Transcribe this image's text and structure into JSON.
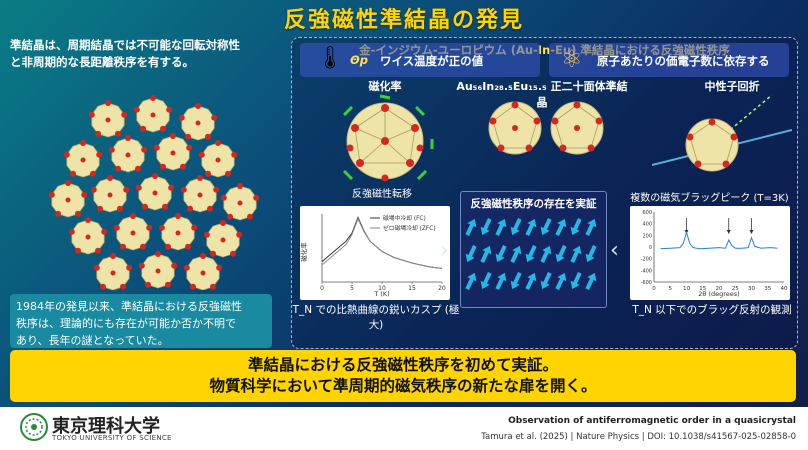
{
  "title": "反強磁性準結晶の発見",
  "left": {
    "intro_line1": "準結晶は、周期結晶では不可能な回転対称性",
    "intro_line2": "と非周期的な長距離秩序を有する。",
    "history_line1": "1984年の発見以来、準結晶における反強磁性",
    "history_line2": "秩序は、理論的にも存在が可能か否か不明で",
    "history_line3": "あり、長年の謎となっていた。"
  },
  "panel": {
    "title": "金-インジウム-ユーロピウム (Au-In-Eu) 準結晶における反強磁性秩序",
    "susceptibility_label": "磁化率",
    "quasicrystal_label": "Au₅₆In₂₈.₅Eu₁₅.₅ 正二十面体準結晶",
    "neutron_label": "中性子回折",
    "transition_label": "反強磁性転移",
    "legend_fc": "磁場中冷却 (FC)",
    "legend_zfc": "ゼロ磁場冷却 (ZFC)",
    "chart1_ylabel": "磁化率",
    "chart1_xlabel": "T (K)",
    "chart1_caption": "T_N での比熱曲線の鋭いカスプ (極大)",
    "center_title": "反強磁性秩序の存在を実証",
    "bragg_label": "複数の磁気ブラッグピーク (T=3K)",
    "chart2_xlabel": "2θ (degrees)",
    "chart2_caption": "T_N 以下でのブラッグ反射の観測",
    "weiss_symbol": "Θp",
    "weiss_text": "ワイス温度が正の値",
    "electron_text": "原子あたりの価電子数に依存する"
  },
  "banner": {
    "line1": "準結晶における反強磁性秩序を初めて実証。",
    "line2": "物質科学において準周期的磁気秩序の新たな扉を開く。"
  },
  "footer": {
    "logo_text": "東京理科大学",
    "logo_sub": "TOKYO UNIVERSITY OF SCIENCE",
    "ref_title": "Observation of antiferromagnetic order in a quasicrystal",
    "ref": "Tamura et al. (2025)  |  Nature Physics  |  DOI: 10.1038/s41567-025-02858-0"
  },
  "colors": {
    "title": "#ffd400",
    "banner": "#ffd400",
    "panel_title": "#ffe14d",
    "fc_line": "#333333",
    "zfc_line": "#8a8a8a",
    "bragg_line": "#2a7fd4"
  },
  "chart_data": [
    {
      "type": "line",
      "xlabel": "T (K)",
      "ylabel": "磁化率",
      "xlim": [
        0,
        20
      ],
      "x_ticks": [
        0,
        5,
        10,
        15,
        20
      ],
      "series": [
        {
          "name": "磁場中冷却 (FC)",
          "x": [
            0,
            2,
            4,
            5,
            6,
            7,
            8,
            10,
            12,
            15,
            18,
            20
          ],
          "y": [
            0.3,
            0.45,
            0.6,
            0.72,
            0.95,
            0.75,
            0.6,
            0.45,
            0.36,
            0.28,
            0.22,
            0.2
          ]
        },
        {
          "name": "ゼロ磁場冷却 (ZFC)",
          "x": [
            0,
            2,
            4,
            5,
            6,
            7,
            8,
            10,
            12,
            15,
            18,
            20
          ],
          "y": [
            0.25,
            0.4,
            0.55,
            0.7,
            0.93,
            0.74,
            0.6,
            0.45,
            0.36,
            0.28,
            0.22,
            0.2
          ]
        }
      ]
    },
    {
      "type": "line",
      "xlabel": "2θ (degrees)",
      "ylim": [
        -600,
        600
      ],
      "xlim": [
        0,
        40
      ],
      "x_ticks": [
        0,
        5,
        10,
        15,
        20,
        25,
        30,
        35,
        40
      ],
      "y_ticks": [
        600,
        400,
        200,
        0,
        -200,
        -400,
        -600
      ],
      "series": [
        {
          "x": [
            2,
            5,
            8,
            9,
            10,
            11,
            12,
            14,
            17,
            20,
            22,
            23,
            24,
            25,
            27,
            29,
            30,
            31,
            33,
            36,
            38
          ],
          "y": [
            -30,
            -20,
            -10,
            60,
            250,
            60,
            -10,
            -30,
            -20,
            -10,
            -20,
            120,
            20,
            -20,
            -20,
            -10,
            160,
            10,
            -20,
            -10,
            -20
          ]
        }
      ]
    }
  ]
}
